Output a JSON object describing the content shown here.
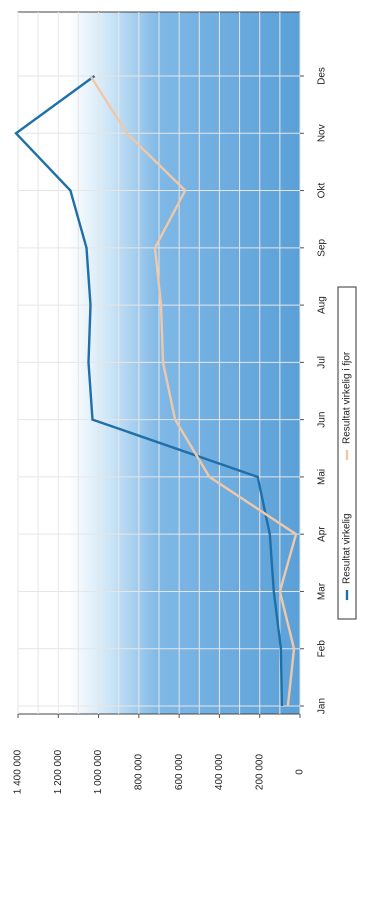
{
  "chart_data": {
    "type": "line",
    "orientation": "rotated-90-clockwise",
    "categories": [
      "Jan",
      "Feb",
      "Mar",
      "Apr",
      "Mai",
      "Jun",
      "Jul",
      "Aug",
      "Sep",
      "Okt",
      "Nov",
      "Des"
    ],
    "series": [
      {
        "name": "Resultat virkelig",
        "color": "#1f6fa8",
        "values": [
          90000,
          95000,
          130000,
          150000,
          210000,
          1030000,
          1050000,
          1040000,
          1060000,
          1140000,
          1410000,
          1020000
        ]
      },
      {
        "name": "Resultat virkelig i fjor",
        "color": "#f0c8a8",
        "values": [
          60000,
          30000,
          100000,
          20000,
          450000,
          620000,
          680000,
          690000,
          720000,
          570000,
          860000,
          1040000
        ]
      }
    ],
    "y_ticks": [
      "0",
      "200 000",
      "400 000",
      "600 000",
      "800 000",
      "1 000 000",
      "1 200 000",
      "1 400 000"
    ],
    "ylim": [
      0,
      1400000
    ],
    "grid": true,
    "legend_position": "bottom",
    "colors": {
      "plot_background_top": "#5aa0d8",
      "plot_background_bottom": "#ffffff",
      "grid": "#e6e6e6",
      "axis": "#555555"
    }
  }
}
